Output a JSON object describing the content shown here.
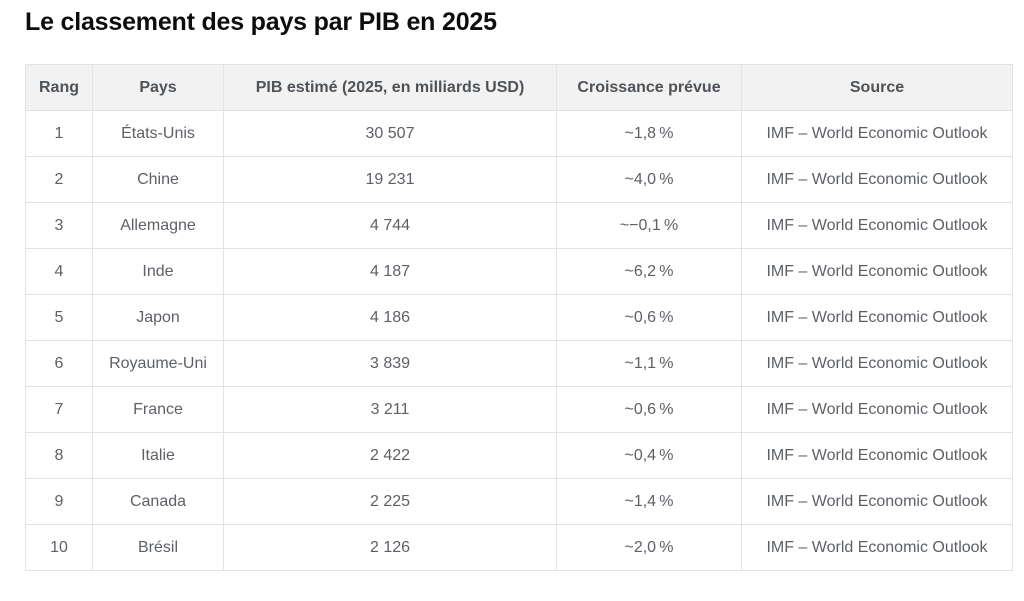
{
  "page": {
    "title": "Le classement des pays par PIB en 2025"
  },
  "colors": {
    "page_background": "#ffffff",
    "title_text": "#0d0d0d",
    "header_background": "#f2f2f2",
    "header_text": "#4e5358",
    "body_text": "#5d6166",
    "table_border": "#e3e3e3"
  },
  "table": {
    "columns": [
      {
        "key": "rank",
        "label": "Rang"
      },
      {
        "key": "country",
        "label": "Pays"
      },
      {
        "key": "gdp",
        "label": "PIB estimé (2025, en milliards USD)"
      },
      {
        "key": "growth",
        "label": "Croissance prévue"
      },
      {
        "key": "source",
        "label": "Source"
      }
    ],
    "rows": [
      {
        "rank": "1",
        "country": "États-Unis",
        "gdp": "30 507",
        "growth": "~1,8 %",
        "source": "IMF – World Economic Outlook"
      },
      {
        "rank": "2",
        "country": "Chine",
        "gdp": "19 231",
        "growth": "~4,0 %",
        "source": "IMF – World Economic Outlook"
      },
      {
        "rank": "3",
        "country": "Allemagne",
        "gdp": "4 744",
        "growth": "~−0,1 %",
        "source": "IMF – World Economic Outlook"
      },
      {
        "rank": "4",
        "country": "Inde",
        "gdp": "4 187",
        "growth": "~6,2 %",
        "source": "IMF – World Economic Outlook"
      },
      {
        "rank": "5",
        "country": "Japon",
        "gdp": "4 186",
        "growth": "~0,6 %",
        "source": "IMF – World Economic Outlook"
      },
      {
        "rank": "6",
        "country": "Royaume-Uni",
        "gdp": "3 839",
        "growth": "~1,1 %",
        "source": "IMF – World Economic Outlook"
      },
      {
        "rank": "7",
        "country": "France",
        "gdp": "3 211",
        "growth": "~0,6 %",
        "source": "IMF – World Economic Outlook"
      },
      {
        "rank": "8",
        "country": "Italie",
        "gdp": "2 422",
        "growth": "~0,4 %",
        "source": "IMF – World Economic Outlook"
      },
      {
        "rank": "9",
        "country": "Canada",
        "gdp": "2 225",
        "growth": "~1,4 %",
        "source": "IMF – World Economic Outlook"
      },
      {
        "rank": "10",
        "country": "Brésil",
        "gdp": "2 126",
        "growth": "~2,0 %",
        "source": "IMF – World Economic Outlook"
      }
    ]
  }
}
